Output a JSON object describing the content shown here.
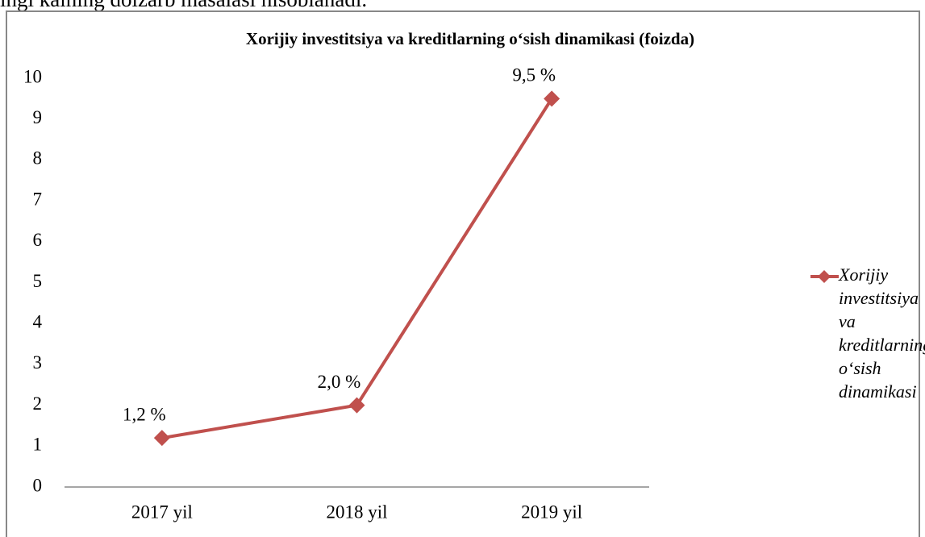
{
  "page_text": "ingi kalning dolzarb masalasi hisoblanadi.",
  "chart_data": {
    "type": "line",
    "title": "Xorijiy  investitsiya va kreditlarning o‘sish dinamikasi (foizda)",
    "categories": [
      "2017 yil",
      "2018 yil",
      "2019 yil"
    ],
    "series": [
      {
        "name": "Xorijiy investitsiya va kreditlarning o‘sish dinamikasi",
        "color": "#c0504d",
        "values": [
          1.2,
          2.0,
          9.5
        ],
        "value_labels": [
          "1,2 %",
          "2,0 %",
          "9,5 %"
        ]
      }
    ],
    "ylim": [
      0,
      10
    ],
    "yticks": [
      0,
      1,
      2,
      3,
      4,
      5,
      6,
      7,
      8,
      9,
      10
    ],
    "grid": false,
    "legend": "right"
  }
}
